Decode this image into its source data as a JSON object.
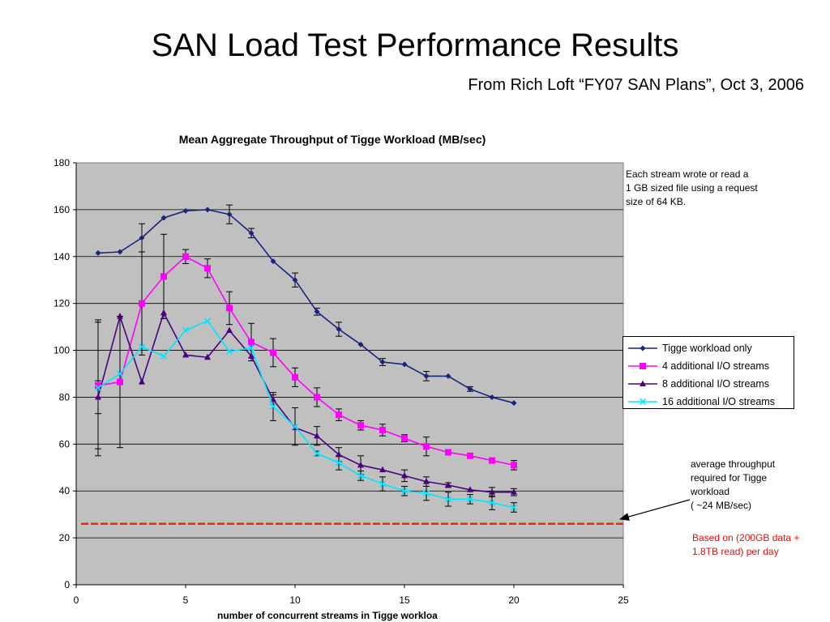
{
  "slide": {
    "title": "SAN Load Test Performance Results",
    "subtitle": "From  Rich Loft “FY07 SAN Plans”, Oct 3, 2006"
  },
  "annotations": {
    "stream_note": "Each stream wrote or read a\n1 GB sized file using a request\nsize of 64 KB.",
    "avg_note": "average throughput\nrequired for Tigge\nworkload\n( ~24 MB/sec)",
    "based_note": "Based on (200GB data +\n1.8TB read) per day"
  },
  "colors": {
    "plot_background": "#c0c0c0",
    "gridline": "#000000",
    "reference_line": "#e03010",
    "arrow": "#000000"
  },
  "chart_data": {
    "type": "line",
    "title": "Mean Aggregate Throughput of Tigge Workload (MB/sec)",
    "xlabel": "number of concurrent streams in Tigge workloa",
    "ylabel": "",
    "xlim": [
      0,
      25
    ],
    "ylim": [
      0,
      180
    ],
    "x_ticks": [
      "0",
      "5",
      "10",
      "15",
      "20",
      "25"
    ],
    "y_ticks": [
      "0",
      "20",
      "40",
      "60",
      "80",
      "100",
      "120",
      "140",
      "160",
      "180"
    ],
    "grid": "horizontal",
    "legend_position": "right",
    "reference_line": {
      "y": 26,
      "style": "dashed"
    },
    "series": [
      {
        "name": "Tigge workload only",
        "color": "#1a237e",
        "marker": "diamond",
        "x": [
          1,
          2,
          3,
          4,
          5,
          6,
          7,
          8,
          9,
          10,
          11,
          12,
          13,
          14,
          15,
          16,
          17,
          18,
          19,
          20
        ],
        "y": [
          141.5,
          142,
          148,
          156.5,
          159.5,
          160,
          158,
          150,
          138,
          130,
          116.5,
          109,
          102.5,
          95,
          94,
          89,
          89,
          83.5,
          80,
          77.5
        ],
        "err": [
          0,
          0,
          6,
          0,
          0,
          0,
          4,
          2,
          0,
          3,
          1.5,
          3,
          0,
          1.5,
          0,
          2,
          0,
          1,
          0,
          0
        ]
      },
      {
        "name": "4 additional I/O streams",
        "color": "#ff00ff",
        "marker": "square",
        "x": [
          1,
          2,
          3,
          4,
          5,
          6,
          7,
          8,
          9,
          10,
          11,
          12,
          13,
          14,
          15,
          16,
          17,
          18,
          19,
          20
        ],
        "y": [
          85,
          86.5,
          120,
          131.5,
          140,
          135,
          118,
          103.5,
          99,
          88.5,
          80,
          72.5,
          68,
          66,
          62.5,
          59,
          56.5,
          55,
          53,
          51
        ],
        "err": [
          27,
          28,
          22,
          18,
          3,
          4,
          7,
          8,
          6,
          4,
          4,
          2.5,
          2,
          2.5,
          1.5,
          4,
          1,
          0,
          0,
          2
        ]
      },
      {
        "name": "8 additional I/O streams",
        "color": "#4b0082",
        "marker": "triangle",
        "x": [
          1,
          2,
          3,
          4,
          5,
          6,
          7,
          8,
          9,
          10,
          11,
          12,
          13,
          14,
          15,
          16,
          17,
          18,
          19,
          20
        ],
        "y": [
          80,
          114.5,
          86.5,
          116,
          98,
          97,
          108.5,
          97.5,
          79,
          67,
          63.5,
          55.5,
          51,
          49,
          46.5,
          44,
          42.5,
          40.5,
          39.5,
          39.5
        ],
        "err": [
          7,
          0,
          0,
          0,
          0,
          0,
          0,
          0,
          2,
          0,
          4,
          3,
          4,
          0,
          2.5,
          2,
          1,
          0,
          2,
          1.5
        ]
      },
      {
        "name": "16 additional I/O streams",
        "color": "#00e5ff",
        "marker": "x",
        "x": [
          1,
          2,
          3,
          4,
          5,
          6,
          7,
          8,
          9,
          10,
          11,
          12,
          13,
          14,
          15,
          16,
          17,
          18,
          19,
          20
        ],
        "y": [
          84,
          90,
          101.5,
          97.5,
          108.5,
          112.5,
          99.5,
          101,
          76,
          67.5,
          56,
          52,
          46.5,
          43,
          40,
          39,
          36.5,
          36.5,
          35,
          33
        ],
        "err": [
          29,
          0,
          0,
          0,
          0,
          0,
          0,
          0,
          6,
          8,
          1,
          3,
          2,
          3,
          2,
          3,
          3,
          2,
          3,
          2
        ]
      }
    ]
  }
}
